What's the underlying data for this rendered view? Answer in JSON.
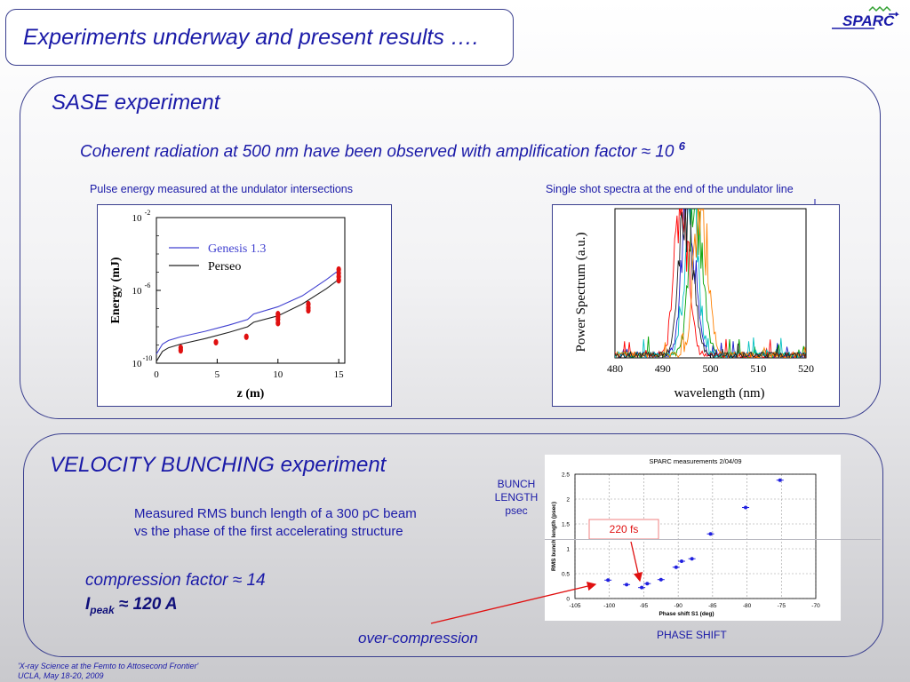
{
  "slide": {
    "title": "Experiments underway and present results ….",
    "logo_text": "SPARC",
    "sase": {
      "heading": "SASE experiment",
      "subtitle": "Coherent radiation at 500 nm have been observed with amplification factor ≈ 10",
      "subtitle_exp": "6",
      "caption_left": "Pulse energy measured at the undulator intersections",
      "caption_right": "Single shot spectra at the end of the undulator line"
    },
    "vb": {
      "heading": "VELOCITY BUNCHING experiment",
      "desc_line1": "Measured RMS bunch length of a 300 pC beam",
      "desc_line2": "vs  the phase of the first accelerating structure",
      "compression": "compression factor ≈ 14",
      "ipeak_I": "I",
      "ipeak_sub": "peak",
      "ipeak_rest": " ≈ 120 A",
      "over_compression": "over-compression",
      "bunch_label_1": "BUNCH",
      "bunch_label_2": "LENGTH",
      "bunch_label_3": "psec",
      "phase_label": "PHASE SHIFT",
      "annotation_220": "220 fs"
    },
    "footer_line1": "'X-ray Science at the Femto to Attosecond Frontier'",
    "footer_line2": "UCLA, May 18-20, 2009"
  },
  "chart_data": [
    {
      "type": "line",
      "xlabel": "z (m)",
      "ylabel": "Energy (mJ)",
      "x_ticks": [
        "0",
        "5",
        "10",
        "15"
      ],
      "y_ticks": [
        "10",
        "10",
        "10"
      ],
      "y_tick_exps": [
        "-2",
        "-6",
        "-10"
      ],
      "y_scale": "log",
      "xlim": [
        0,
        15.5
      ],
      "ylim_log10": [
        -10,
        -2
      ],
      "legend": [
        "Genesis 1.3",
        "Perseo"
      ],
      "legend_position": "top-left",
      "series": [
        {
          "name": "Genesis 1.3",
          "color": "#4040d0",
          "x": [
            0,
            0.5,
            1,
            2,
            4,
            6,
            7.5,
            8,
            10,
            12,
            14,
            15
          ],
          "y_log10": [
            -9.5,
            -8.95,
            -8.75,
            -8.55,
            -8.25,
            -7.9,
            -7.6,
            -7.3,
            -6.9,
            -6.3,
            -5.4,
            -4.9
          ]
        },
        {
          "name": "Perseo",
          "color": "#222222",
          "x": [
            0,
            0.5,
            1,
            2,
            4,
            6,
            7.5,
            8,
            10,
            12,
            14,
            15
          ],
          "y_log10": [
            -9.9,
            -9.35,
            -9.15,
            -8.95,
            -8.65,
            -8.3,
            -8.0,
            -7.75,
            -7.4,
            -6.75,
            -5.9,
            -5.4
          ]
        }
      ],
      "measurements": {
        "color": "#e01010",
        "x": [
          2,
          2,
          4.9,
          7.4,
          10,
          10,
          10,
          10,
          12.5,
          12.5,
          12.5,
          15,
          15,
          15,
          15
        ],
        "y_log10": [
          -9.15,
          -9.3,
          -8.85,
          -8.55,
          -7.3,
          -7.45,
          -7.6,
          -7.8,
          -6.75,
          -6.95,
          -7.1,
          -4.85,
          -5.05,
          -5.25,
          -5.45
        ]
      }
    },
    {
      "type": "line",
      "xlabel": "wavelength (nm)",
      "ylabel": "Power Spectrum (a.u.)",
      "x_ticks": [
        480,
        490,
        500,
        510,
        520
      ],
      "xlim": [
        480,
        520
      ],
      "ylim": [
        0,
        1
      ],
      "series_colors": [
        "#1a1acc",
        "#00a000",
        "#ff0000",
        "#00c0c0",
        "#ff8000",
        "#202020"
      ],
      "peak_centers": [
        495.5,
        497,
        494,
        496,
        498,
        495
      ]
    },
    {
      "type": "scatter",
      "title": "SPARC measurements 2/04/09",
      "xlabel": "Phase shift S1 (deg)",
      "ylabel": "RMS bunch length (psec)",
      "x_ticks": [
        -105,
        -100,
        -95,
        -90,
        -85,
        -80,
        -75,
        -70
      ],
      "y_ticks": [
        0,
        0.5,
        1,
        1.5,
        2,
        2.5
      ],
      "xlim": [
        -105,
        -70
      ],
      "ylim": [
        0,
        2.5
      ],
      "grid": true,
      "color": "#2020e0",
      "x": [
        -100.2,
        -97.5,
        -95.3,
        -94.5,
        -92.5,
        -90.3,
        -89.5,
        -88,
        -85.3,
        -80.2,
        -75.2
      ],
      "y": [
        0.37,
        0.28,
        0.22,
        0.3,
        0.38,
        0.63,
        0.75,
        0.8,
        1.3,
        1.83,
        2.38
      ]
    }
  ]
}
